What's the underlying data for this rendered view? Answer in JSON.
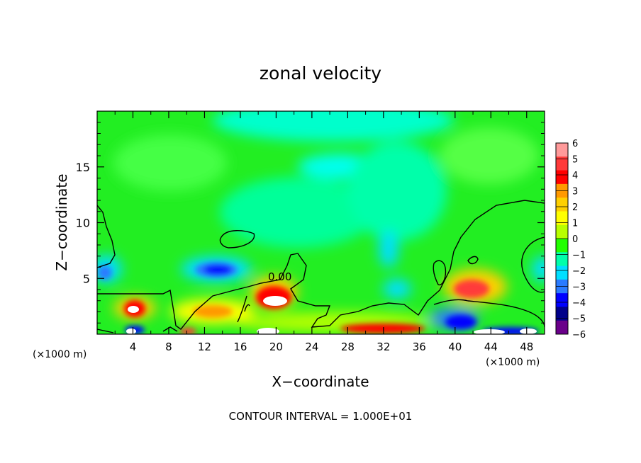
{
  "chart_data": {
    "type": "heatmap",
    "title": "zonal velocity",
    "xlabel": "X−coordinate",
    "ylabel": "Z−coordinate",
    "x_unit_left": "(×1000 m)",
    "x_unit_right": "(×1000 m)",
    "footer": "CONTOUR INTERVAL = 1.000E+01",
    "xlim": [
      0,
      50
    ],
    "ylim": [
      0,
      20
    ],
    "x_ticks": [
      "4",
      "8",
      "12",
      "16",
      "20",
      "24",
      "28",
      "32",
      "36",
      "40",
      "44",
      "48"
    ],
    "y_ticks": [
      "5",
      "10",
      "15"
    ],
    "contour_label": "0.00",
    "colorbar": {
      "labels": [
        "6",
        "5",
        "4",
        "3",
        "2",
        "1",
        "0",
        "−1",
        "−2",
        "−3",
        "−4",
        "−5",
        "−6"
      ],
      "levels": [
        6,
        5,
        4,
        3,
        2,
        1,
        0,
        -1,
        -2,
        -3,
        -4,
        -5,
        -6
      ],
      "colors": [
        "#ff9a9a",
        "#ff3a3a",
        "#ff0000",
        "#ff9900",
        "#ffd000",
        "#ffff00",
        "#b8ff00",
        "#22ff00",
        "#00ffaa",
        "#00dfff",
        "#2a7bff",
        "#0000ff",
        "#00008a",
        "#6a008a"
      ]
    },
    "background_value": -0.5,
    "features": [
      {
        "x": 14,
        "y": 5.7,
        "value": -3.6,
        "note": "blue core"
      },
      {
        "x": 1,
        "y": 5.5,
        "value": -2.8
      },
      {
        "x": 19.5,
        "y": 3,
        "value": 5.5,
        "note": "red/white core"
      },
      {
        "x": 4,
        "y": 2.3,
        "value": 5.0
      },
      {
        "x": 42,
        "y": 4.2,
        "value": 4.3
      },
      {
        "x": 13,
        "y": 2.2,
        "value": 2.6
      },
      {
        "x": 32,
        "y": 7.5,
        "value": -2.1
      },
      {
        "x": 34,
        "y": 4.5,
        "value": -2.2
      },
      {
        "x": 26,
        "y": 15.3,
        "value": -1.7
      },
      {
        "x": 26,
        "y": 19.5,
        "value": -1.6
      },
      {
        "x": 49,
        "y": 5.5,
        "value": -2.3
      },
      {
        "x": 41,
        "y": 1.2,
        "value": -4.5
      },
      {
        "x": 31,
        "y": 0.5,
        "value": 4.5
      },
      {
        "x": 6,
        "y": 0.5,
        "value": -5
      },
      {
        "x": 10,
        "y": 0.4,
        "value": 3.5
      },
      {
        "x": 44,
        "y": 0.6,
        "value": -5.5
      }
    ]
  }
}
